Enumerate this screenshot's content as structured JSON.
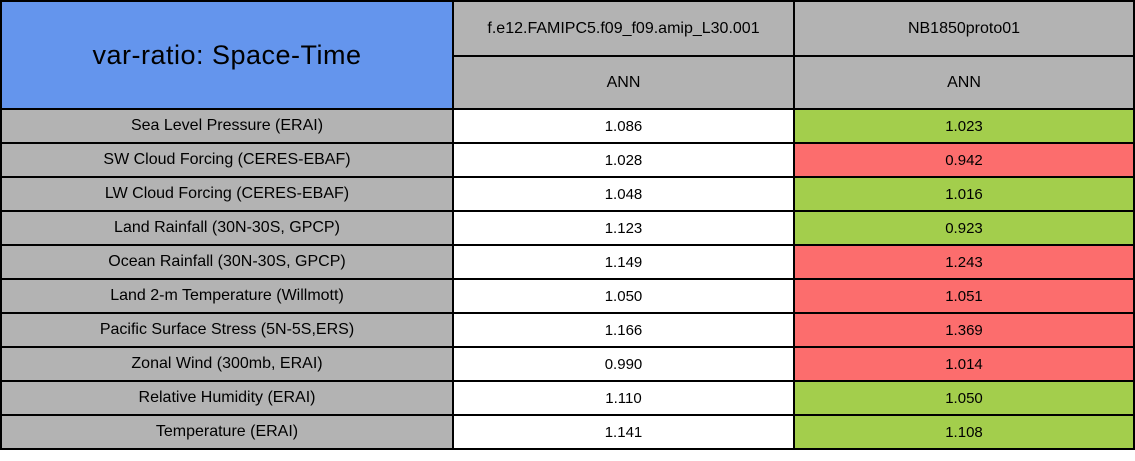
{
  "chart_data": {
    "type": "table",
    "title": "var-ratio: Space-Time",
    "columns": [
      {
        "name": "f.e12.FAMIPC5.f09_f09.amip_L30.001",
        "season": "ANN"
      },
      {
        "name": "NB1850proto01",
        "season": "ANN"
      }
    ],
    "rows": [
      {
        "label": "Sea Level Pressure (ERAI)",
        "values": [
          "1.086",
          "1.023"
        ],
        "cell_colors": [
          "white",
          "green"
        ]
      },
      {
        "label": "SW Cloud Forcing (CERES-EBAF)",
        "values": [
          "1.028",
          "0.942"
        ],
        "cell_colors": [
          "white",
          "red"
        ]
      },
      {
        "label": "LW Cloud Forcing (CERES-EBAF)",
        "values": [
          "1.048",
          "1.016"
        ],
        "cell_colors": [
          "white",
          "green"
        ]
      },
      {
        "label": "Land Rainfall (30N-30S, GPCP)",
        "values": [
          "1.123",
          "0.923"
        ],
        "cell_colors": [
          "white",
          "green"
        ]
      },
      {
        "label": "Ocean Rainfall (30N-30S, GPCP)",
        "values": [
          "1.149",
          "1.243"
        ],
        "cell_colors": [
          "white",
          "red"
        ]
      },
      {
        "label": "Land 2-m Temperature (Willmott)",
        "values": [
          "1.050",
          "1.051"
        ],
        "cell_colors": [
          "white",
          "red"
        ]
      },
      {
        "label": "Pacific Surface Stress (5N-5S,ERS)",
        "values": [
          "1.166",
          "1.369"
        ],
        "cell_colors": [
          "white",
          "red"
        ]
      },
      {
        "label": "Zonal Wind (300mb, ERAI)",
        "values": [
          "0.990",
          "1.014"
        ],
        "cell_colors": [
          "white",
          "red"
        ]
      },
      {
        "label": "Relative Humidity (ERAI)",
        "values": [
          "1.110",
          "1.050"
        ],
        "cell_colors": [
          "white",
          "green"
        ]
      },
      {
        "label": "Temperature (ERAI)",
        "values": [
          "1.141",
          "1.108"
        ],
        "cell_colors": [
          "white",
          "green"
        ]
      }
    ]
  },
  "colors": {
    "title_blue": "#6495ED",
    "header_gray": "#B3B3B3",
    "label_gray": "#B3B3B3",
    "value_white": "#FFFFFF",
    "value_green": "#A3CE4C",
    "value_red": "#FC6D6D",
    "border": "#000000"
  }
}
